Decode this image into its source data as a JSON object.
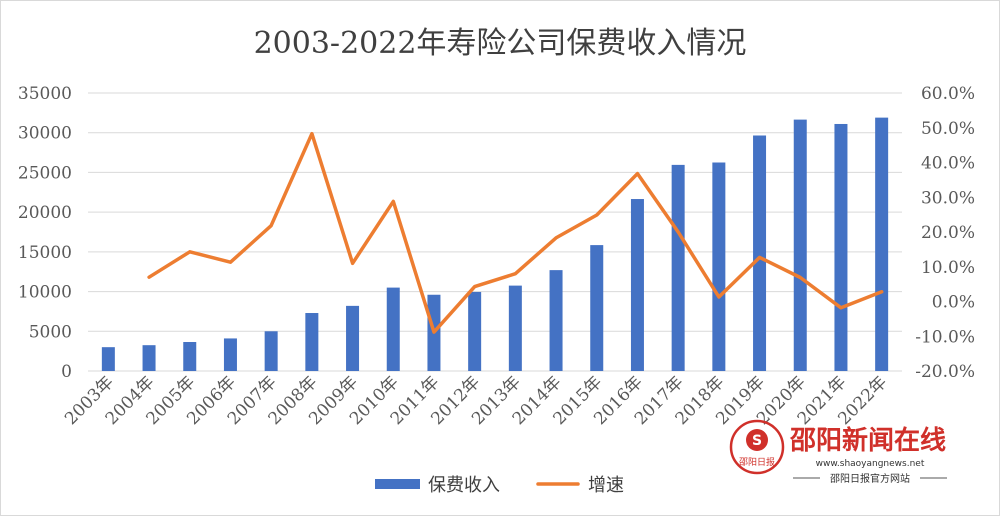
{
  "chart_data": {
    "type": "bar",
    "title": "2003-2022年寿险公司保费收入情况",
    "categories": [
      "2003年",
      "2004年",
      "2005年",
      "2006年",
      "2007年",
      "2008年",
      "2009年",
      "2010年",
      "2011年",
      "2012年",
      "2013年",
      "2014年",
      "2015年",
      "2016年",
      "2017年",
      "2018年",
      "2019年",
      "2020年",
      "2021年",
      "2022年"
    ],
    "series": [
      {
        "name": "保费收入",
        "kind": "bar",
        "axis": "left",
        "color": "#4472c4",
        "values": [
          3000,
          3250,
          3650,
          4100,
          5000,
          7300,
          8200,
          10500,
          9600,
          9950,
          10750,
          12700,
          15850,
          21650,
          25950,
          26250,
          29650,
          31650,
          31100,
          31900
        ]
      },
      {
        "name": "增速",
        "kind": "line",
        "axis": "right",
        "color": "#ed7d31",
        "values": [
          null,
          7.0,
          14.3,
          11.3,
          21.8,
          48.3,
          11.0,
          28.8,
          -8.8,
          4.3,
          8.0,
          18.3,
          24.9,
          36.8,
          20.0,
          1.3,
          12.7,
          6.9,
          -1.8,
          2.8
        ]
      }
    ],
    "y_left": {
      "ylim": [
        0,
        35000
      ],
      "ticks": [
        "0",
        "5000",
        "10000",
        "15000",
        "20000",
        "25000",
        "30000",
        "35000"
      ]
    },
    "y_right": {
      "ylim": [
        -20,
        60
      ],
      "ticks": [
        "-20.0%",
        "-10.0%",
        "0.0%",
        "10.0%",
        "20.0%",
        "30.0%",
        "40.0%",
        "50.0%",
        "60.0%"
      ]
    },
    "grid": true,
    "legend_position": "bottom"
  },
  "watermark": {
    "title": "邵阳新闻在线",
    "url": "www.shaoyangnews.net",
    "subtitle": "邵阳日报官方网站",
    "seal_text": "邵阳日报",
    "seal_letter": "S",
    "seal_color": "#d0302a"
  }
}
